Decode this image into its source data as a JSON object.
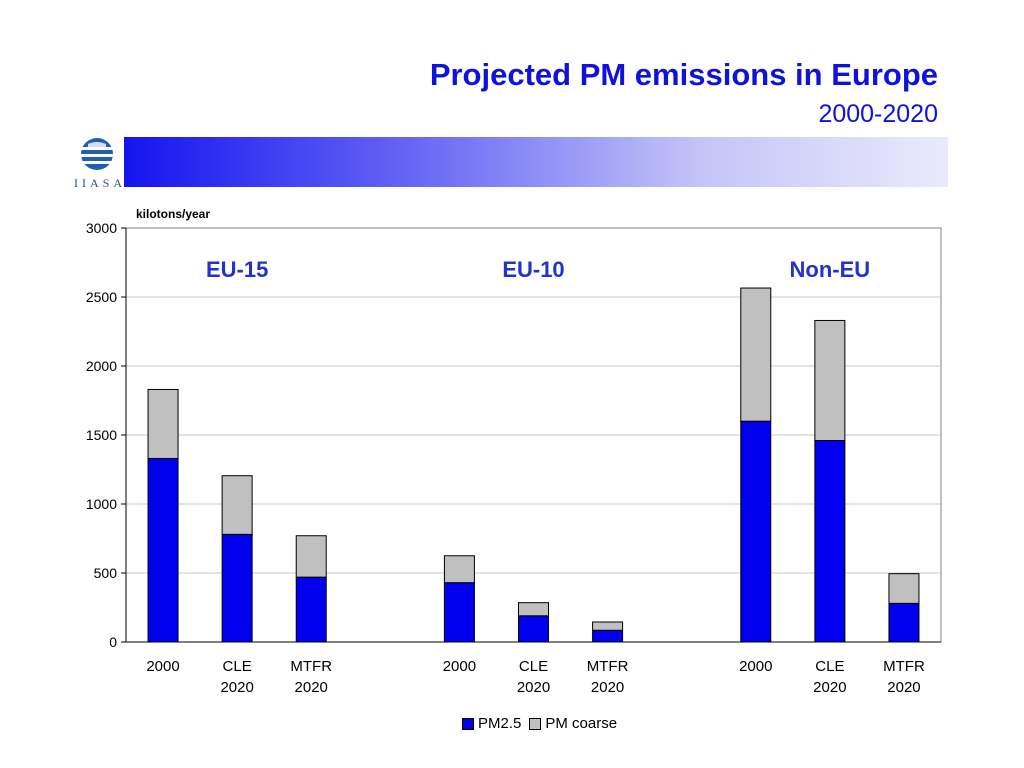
{
  "header": {
    "title": "Projected PM emissions in Europe",
    "subtitle": "2000-2020",
    "logo_text": "IIASA"
  },
  "colors": {
    "pm25": "#0000ee",
    "pm_coarse": "#c0c0c0",
    "title": "#1111dd",
    "group_label": "#2233cc"
  },
  "chart_data": {
    "type": "bar",
    "stacked": true,
    "ylabel": "kilotons/year",
    "ylim": [
      0,
      3000
    ],
    "yticks": [
      0,
      500,
      1000,
      1500,
      2000,
      2500,
      3000
    ],
    "grid": true,
    "legend_position": "bottom-center",
    "groups": [
      {
        "label": "EU-15",
        "categories": [
          "2000",
          "CLE\n2020",
          "MTFR\n2020"
        ]
      },
      {
        "label": "EU-10",
        "categories": [
          "2000",
          "CLE\n2020",
          "MTFR\n2020"
        ]
      },
      {
        "label": "Non-EU",
        "categories": [
          "2000",
          "CLE\n2020",
          "MTFR\n2020"
        ]
      }
    ],
    "series": [
      {
        "name": "PM2.5",
        "values": [
          1330,
          780,
          470,
          430,
          190,
          85,
          1600,
          1460,
          280
        ]
      },
      {
        "name": "PM coarse",
        "values": [
          500,
          425,
          300,
          195,
          95,
          60,
          965,
          870,
          215
        ]
      }
    ]
  }
}
